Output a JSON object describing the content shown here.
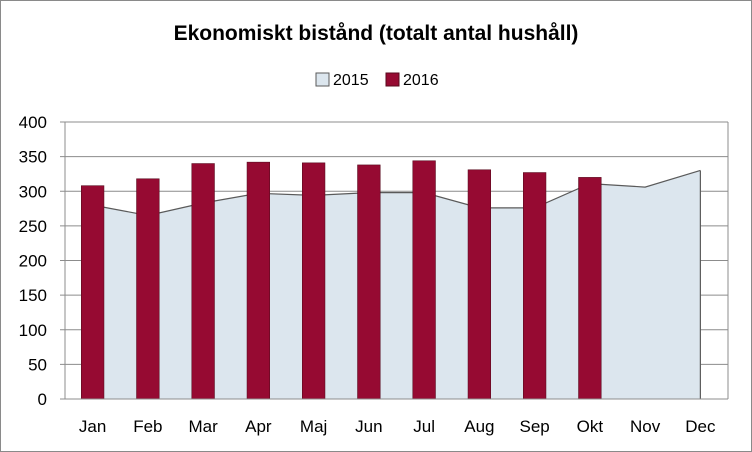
{
  "chart_data": {
    "type": "bar",
    "title": "Ekonomiskt bistånd (totalt antal hushåll)",
    "xlabel": "",
    "ylabel": "",
    "categories": [
      "Jan",
      "Feb",
      "Mar",
      "Apr",
      "Maj",
      "Jun",
      "Jul",
      "Aug",
      "Sep",
      "Okt",
      "Nov",
      "Dec"
    ],
    "ylim": [
      0,
      400
    ],
    "yticks": [
      "0",
      "50",
      "100",
      "150",
      "200",
      "250",
      "300",
      "350",
      "400"
    ],
    "grid": true,
    "legend_position": "top-center",
    "series": [
      {
        "name": "2015",
        "kind": "area",
        "color": "#dce6ee",
        "stroke": "#5a5a5a",
        "values": [
          280,
          265,
          283,
          297,
          294,
          298,
          298,
          276,
          276,
          311,
          306,
          330
        ]
      },
      {
        "name": "2016",
        "kind": "bar",
        "color": "#960a32",
        "stroke": "#5a0a1e",
        "values": [
          308,
          318,
          340,
          342,
          341,
          338,
          344,
          331,
          327,
          320,
          null,
          null
        ]
      }
    ]
  }
}
